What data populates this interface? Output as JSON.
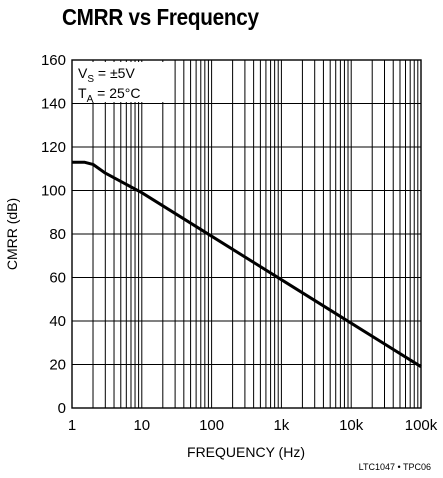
{
  "chart_data": {
    "type": "line",
    "title": "CMRR vs Frequency",
    "xlabel": "FREQUENCY (Hz)",
    "ylabel": "CMRR (dB)",
    "x_scale": "log",
    "xlim": [
      1,
      100000
    ],
    "ylim": [
      0,
      160
    ],
    "grid": true,
    "x_tick_labels": [
      "1",
      "10",
      "100",
      "1k",
      "10k",
      "100k"
    ],
    "y_tick_labels": [
      "0",
      "20",
      "40",
      "60",
      "80",
      "100",
      "120",
      "140",
      "160"
    ],
    "conditions": {
      "vs_main": "V",
      "vs_sub": "S",
      "vs_value": " = ±5V",
      "ta_main": "T",
      "ta_sub": "A",
      "ta_value": " = 25°C"
    },
    "series": [
      {
        "x": [
          1,
          1.5,
          2,
          3,
          10,
          100,
          1000,
          10000,
          100000
        ],
        "values": [
          113,
          113,
          112,
          108,
          99,
          79,
          59,
          39,
          19
        ]
      }
    ]
  },
  "footnote": "LTC1047 • TPC06",
  "colors": {
    "line": "#000000",
    "grid": "#000000",
    "background": "#ffffff"
  }
}
